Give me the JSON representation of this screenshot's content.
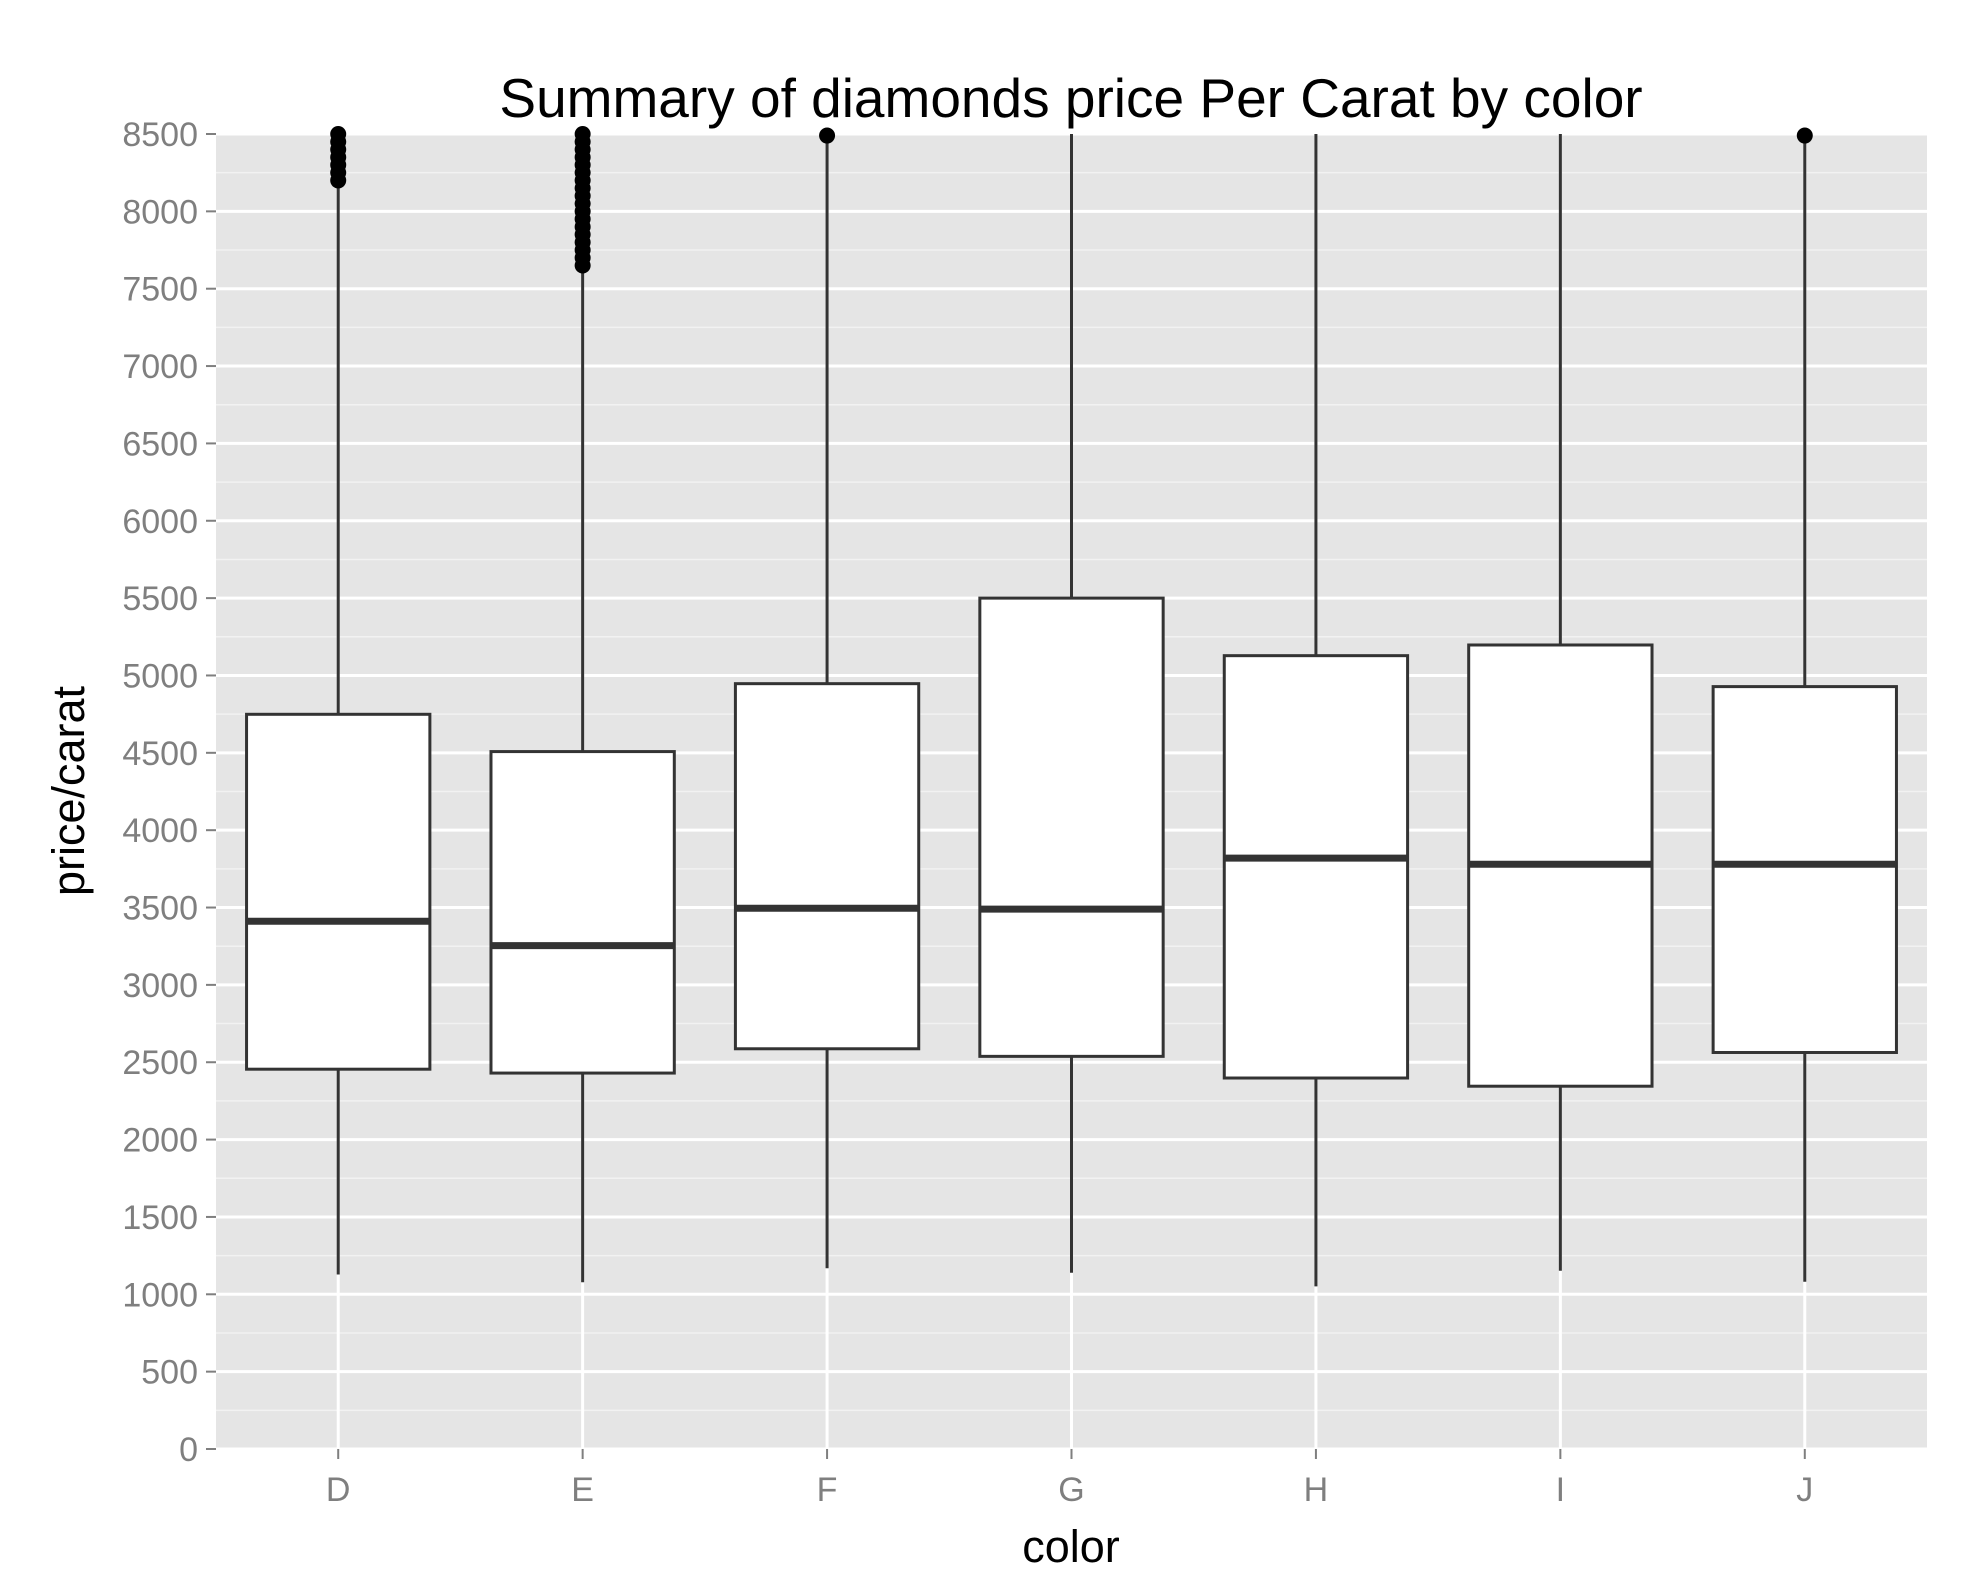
{
  "chart_data": {
    "type": "box",
    "title": "Summary of diamonds price Per Carat by color",
    "xlabel": "color",
    "ylabel": "price/carat",
    "ylim": [
      0,
      8500
    ],
    "yticks": [
      "0",
      "500",
      "1000",
      "1500",
      "2000",
      "2500",
      "3000",
      "3500",
      "4000",
      "4500",
      "5000",
      "5500",
      "6000",
      "6500",
      "7000",
      "7500",
      "8000",
      "8500"
    ],
    "categories": [
      "D",
      "E",
      "F",
      "G",
      "H",
      "I",
      "J"
    ],
    "boxes": [
      {
        "category": "D",
        "whisker_low": 1128,
        "q1": 2455,
        "median": 3411,
        "q3": 4749,
        "whisker_high": 8175,
        "outliers": [
          8200,
          8250,
          8300,
          8350,
          8400,
          8450,
          8500
        ]
      },
      {
        "category": "E",
        "whisker_low": 1078,
        "q1": 2430,
        "median": 3254,
        "q3": 4508,
        "whisker_high": 7620,
        "outliers": [
          7650,
          7700,
          7750,
          7800,
          7850,
          7900,
          7950,
          8000,
          8050,
          8100,
          8150,
          8200,
          8250,
          8300,
          8350,
          8400,
          8450,
          8500
        ]
      },
      {
        "category": "F",
        "whisker_low": 1168,
        "q1": 2587,
        "median": 3495,
        "q3": 4947,
        "whisker_high": 8475,
        "outliers": [
          8490
        ]
      },
      {
        "category": "G",
        "whisker_low": 1139,
        "q1": 2538,
        "median": 3490,
        "q3": 5500,
        "whisker_high": 8500,
        "outliers": []
      },
      {
        "category": "H",
        "whisker_low": 1051,
        "q1": 2398,
        "median": 3819,
        "q3": 5128,
        "whisker_high": 8500,
        "outliers": []
      },
      {
        "category": "I",
        "whisker_low": 1152,
        "q1": 2345,
        "median": 3780,
        "q3": 5197,
        "whisker_high": 8500,
        "outliers": []
      },
      {
        "category": "J",
        "whisker_low": 1081,
        "q1": 2563,
        "median": 3780,
        "q3": 4928,
        "whisker_high": 8475,
        "outliers": [
          8490
        ]
      }
    ],
    "grid": true,
    "colors": {
      "panel_background": "#e5e5e5",
      "gridline": "#ffffff",
      "box_fill": "#ffffff",
      "box_stroke": "#333333",
      "tick_label": "#7f7f7f"
    }
  }
}
